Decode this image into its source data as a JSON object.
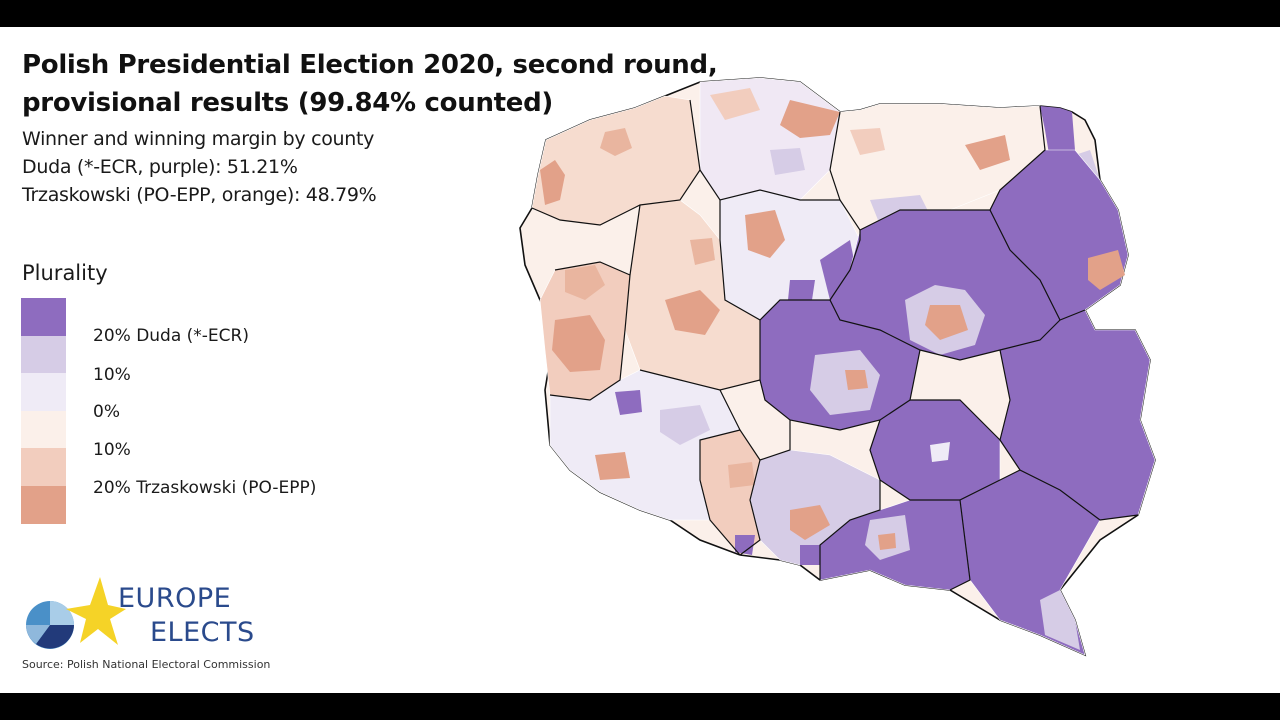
{
  "title": {
    "line1": "Polish Presidential Election 2020, second round,",
    "line2": "provisional results (99.84% counted)"
  },
  "subtitle": {
    "line1": "Winner and winning margin by county",
    "line2": "Duda (*-ECR, purple): 51.21%",
    "line3": "Trzaskowski (PO-EPP, orange): 48.79%"
  },
  "legend": {
    "title": "Plurality",
    "items": [
      {
        "label": "",
        "color": "#8e6cbf"
      },
      {
        "label": "20% Duda (*-ECR)",
        "color": "#d6cce6"
      },
      {
        "label": "10%",
        "color": "#efebf6"
      },
      {
        "label": "0%",
        "color": "#fbf0ea"
      },
      {
        "label": "10%",
        "color": "#f2cdbe"
      },
      {
        "label": "20% Trzaskowski (PO-EPP)",
        "color": "#e2a189"
      }
    ]
  },
  "logo": {
    "line1": "EUROPE",
    "line2": "ELECTS"
  },
  "source": "Source: Polish National Electoral Commission",
  "colors": {
    "duda_strong": "#8e6cbf",
    "duda_mid": "#d6cce6",
    "duda_light": "#efebf6",
    "trz_light": "#fbf0ea",
    "trz_mid": "#f2cdbe",
    "trz_strong": "#e2a189",
    "logo_blue": "#2a4a8c",
    "logo_star": "#f5d327"
  }
}
